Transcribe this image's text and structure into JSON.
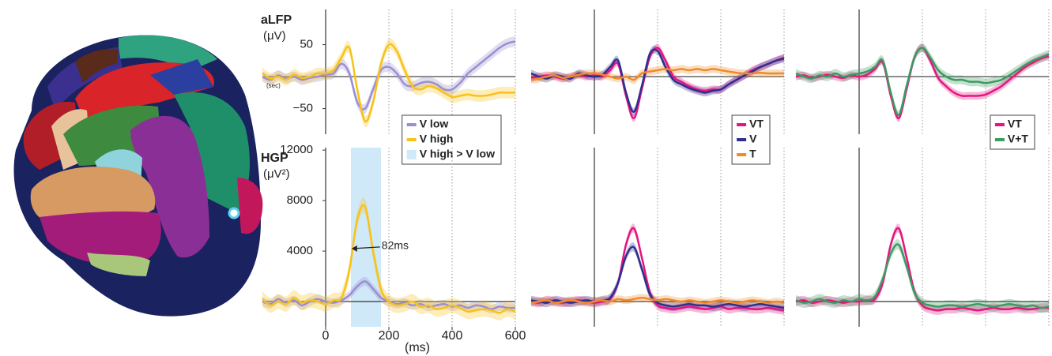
{
  "chart_data": [
    {
      "type": "line",
      "title": "aLFP",
      "ylabel": "(μV)",
      "xlabel": "(sec)",
      "x": [
        -200,
        -175,
        -150,
        -125,
        -100,
        -75,
        -50,
        -25,
        0,
        25,
        50,
        75,
        100,
        125,
        150,
        175,
        200,
        225,
        250,
        275,
        300,
        325,
        350,
        375,
        400,
        425,
        450,
        475,
        500,
        525,
        550,
        575,
        600
      ],
      "xlim": [
        -200,
        600
      ],
      "ylim": [
        -90,
        105
      ],
      "grid_x": [
        200,
        400,
        600
      ],
      "yticks": [
        50,
        {
          "value": -50,
          "label": "−50"
        }
      ],
      "legend": "lower right",
      "series": [
        {
          "name": "V low",
          "color": "#9a8fd2",
          "error": 8,
          "values": [
            0,
            -5,
            2,
            -3,
            0,
            -5,
            -2,
            0,
            3,
            5,
            20,
            5,
            -40,
            -50,
            -20,
            10,
            15,
            5,
            -12,
            -15,
            -10,
            -8,
            -12,
            -20,
            -20,
            -10,
            5,
            15,
            25,
            35,
            45,
            52,
            55
          ]
        },
        {
          "name": "V high",
          "color": "#f7c21b",
          "error": 9,
          "values": [
            5,
            -3,
            0,
            -5,
            3,
            -2,
            0,
            5,
            5,
            10,
            30,
            45,
            -20,
            -70,
            -40,
            20,
            50,
            40,
            10,
            -15,
            -20,
            -15,
            -18,
            -25,
            -32,
            -30,
            -28,
            -30,
            -30,
            -28,
            -25,
            -25,
            -25
          ]
        }
      ]
    },
    {
      "type": "line",
      "x": [
        -200,
        -175,
        -150,
        -125,
        -100,
        -75,
        -50,
        -25,
        0,
        25,
        50,
        75,
        100,
        125,
        150,
        175,
        200,
        225,
        250,
        275,
        300,
        325,
        350,
        375,
        400,
        425,
        450,
        475,
        500,
        525,
        550,
        575,
        600
      ],
      "xlim": [
        -200,
        600
      ],
      "ylim": [
        -90,
        105
      ],
      "grid_x": [
        200,
        400,
        600
      ],
      "legend": "lower right",
      "series": [
        {
          "name": "VT",
          "color": "#e5157f",
          "error": 6,
          "values": [
            -2,
            0,
            2,
            0,
            -3,
            0,
            3,
            0,
            2,
            0,
            10,
            20,
            -30,
            -65,
            -20,
            30,
            45,
            25,
            0,
            -8,
            -15,
            -20,
            -22,
            -20,
            -20,
            -12,
            -5,
            2,
            10,
            15,
            20,
            25,
            30
          ]
        },
        {
          "name": "V",
          "color": "#2d2f8e",
          "error": 6,
          "values": [
            5,
            0,
            -3,
            2,
            0,
            -3,
            5,
            2,
            0,
            3,
            15,
            25,
            -25,
            -55,
            -15,
            35,
            40,
            15,
            -5,
            -12,
            -18,
            -22,
            -25,
            -22,
            -20,
            -12,
            -5,
            2,
            8,
            15,
            20,
            25,
            28
          ]
        },
        {
          "name": "T",
          "color": "#ef8a2a",
          "error": 6,
          "values": [
            -5,
            -3,
            0,
            2,
            -2,
            0,
            3,
            5,
            5,
            3,
            0,
            -3,
            0,
            -5,
            5,
            8,
            10,
            12,
            10,
            12,
            10,
            12,
            10,
            12,
            10,
            8,
            6,
            5,
            5,
            6,
            5,
            5,
            5
          ]
        }
      ]
    },
    {
      "type": "line",
      "x": [
        -200,
        -175,
        -150,
        -125,
        -100,
        -75,
        -50,
        -25,
        0,
        25,
        50,
        75,
        100,
        125,
        150,
        175,
        200,
        225,
        250,
        275,
        300,
        325,
        350,
        375,
        400,
        425,
        450,
        475,
        500,
        525,
        550,
        575,
        600
      ],
      "xlim": [
        -200,
        600
      ],
      "ylim": [
        -90,
        105
      ],
      "grid_x": [
        200,
        400,
        600
      ],
      "legend": "lower right",
      "series": [
        {
          "name": "VT",
          "color": "#e5157f",
          "error": 6,
          "values": [
            0,
            2,
            -2,
            0,
            3,
            0,
            -2,
            2,
            0,
            3,
            12,
            22,
            -30,
            -65,
            -20,
            30,
            45,
            25,
            -2,
            -15,
            -25,
            -30,
            -30,
            -30,
            -28,
            -22,
            -15,
            -5,
            5,
            15,
            22,
            28,
            32
          ]
        },
        {
          "name": "V+T",
          "color": "#3d9a60",
          "error": 7,
          "values": [
            5,
            0,
            -3,
            2,
            0,
            5,
            0,
            3,
            5,
            8,
            15,
            25,
            -25,
            -60,
            -15,
            30,
            45,
            30,
            10,
            0,
            -5,
            -5,
            -8,
            -8,
            -10,
            -8,
            -5,
            2,
            10,
            18,
            25,
            30,
            35
          ]
        }
      ]
    },
    {
      "type": "line",
      "title": "HGP",
      "ylabel": "(μV²)",
      "xlabel": "(ms)",
      "x": [
        -200,
        -175,
        -150,
        -125,
        -100,
        -75,
        -50,
        -25,
        0,
        25,
        50,
        75,
        100,
        125,
        150,
        175,
        200,
        225,
        250,
        275,
        300,
        325,
        350,
        375,
        400,
        425,
        450,
        475,
        500,
        525,
        550,
        575,
        600
      ],
      "xlim": [
        -200,
        600
      ],
      "ylim": [
        -2000,
        12200
      ],
      "grid_x": [
        200,
        400,
        600
      ],
      "xticks": [
        0,
        200,
        400,
        600
      ],
      "yticks": [
        12000,
        8000,
        4000
      ],
      "highlight": {
        "label": "V high > V low",
        "x": [
          80,
          175
        ],
        "color": "#cfe9f8"
      },
      "annotation": {
        "label": "82ms",
        "x": 82,
        "y": 4200
      },
      "series": [
        {
          "name": "V low",
          "color": "#9a8fd2",
          "error": 350,
          "values": [
            0,
            -200,
            200,
            -100,
            100,
            -300,
            0,
            200,
            0,
            -100,
            100,
            500,
            1200,
            1600,
            1000,
            300,
            0,
            -200,
            -100,
            -300,
            -200,
            -400,
            -300,
            -200,
            -400,
            -300,
            -500,
            -300,
            -400,
            -600,
            -400,
            -500,
            -500
          ]
        },
        {
          "name": "V high",
          "color": "#f7c21b",
          "error": 600,
          "values": [
            200,
            -300,
            0,
            -200,
            300,
            -100,
            100,
            0,
            -200,
            100,
            300,
            2500,
            6500,
            7500,
            4000,
            1000,
            0,
            -300,
            -200,
            0,
            -400,
            -300,
            -600,
            -500,
            -300,
            -500,
            -800,
            -700,
            -600,
            -700,
            -900,
            -600,
            -800
          ]
        }
      ]
    },
    {
      "type": "line",
      "x": [
        -200,
        -175,
        -150,
        -125,
        -100,
        -75,
        -50,
        -25,
        0,
        25,
        50,
        75,
        100,
        125,
        150,
        175,
        200,
        225,
        250,
        275,
        300,
        325,
        350,
        375,
        400,
        425,
        450,
        475,
        500,
        525,
        550,
        575,
        600
      ],
      "xlim": [
        -200,
        600
      ],
      "ylim": [
        -2000,
        12200
      ],
      "grid_x": [
        200,
        400,
        600
      ],
      "series": [
        {
          "name": "VT",
          "color": "#e5157f",
          "error": 350,
          "values": [
            0,
            -100,
            100,
            0,
            -100,
            0,
            100,
            0,
            -100,
            0,
            200,
            1500,
            4500,
            5800,
            3500,
            800,
            -300,
            -500,
            -600,
            -500,
            -400,
            -500,
            -600,
            -500,
            -400,
            -600,
            -500,
            -500,
            -600,
            -600,
            -500,
            -600,
            -700
          ]
        },
        {
          "name": "V",
          "color": "#2d2f8e",
          "error": 350,
          "values": [
            100,
            0,
            -100,
            100,
            0,
            -100,
            0,
            100,
            0,
            100,
            300,
            1500,
            3600,
            4300,
            2600,
            600,
            -100,
            -300,
            -400,
            -300,
            -200,
            -300,
            -300,
            -400,
            -300,
            -200,
            -300,
            -400,
            -300,
            -200,
            -300,
            -400,
            -500
          ]
        },
        {
          "name": "T",
          "color": "#ef8a2a",
          "error": 300,
          "values": [
            -100,
            0,
            100,
            -100,
            0,
            100,
            0,
            -100,
            0,
            100,
            0,
            200,
            100,
            200,
            300,
            200,
            100,
            200,
            100,
            0,
            100,
            0,
            -100,
            0,
            100,
            0,
            -100,
            0,
            100,
            0,
            -100,
            0,
            -100
          ]
        }
      ]
    },
    {
      "type": "line",
      "x": [
        -200,
        -175,
        -150,
        -125,
        -100,
        -75,
        -50,
        -25,
        0,
        25,
        50,
        75,
        100,
        125,
        150,
        175,
        200,
        225,
        250,
        275,
        300,
        325,
        350,
        375,
        400,
        425,
        450,
        475,
        500,
        525,
        550,
        575,
        600
      ],
      "xlim": [
        -200,
        600
      ],
      "ylim": [
        -2000,
        12200
      ],
      "grid_x": [
        200,
        400,
        600
      ],
      "series": [
        {
          "name": "VT",
          "color": "#e5157f",
          "error": 350,
          "values": [
            0,
            100,
            -100,
            0,
            100,
            0,
            -100,
            0,
            0,
            100,
            200,
            1500,
            4500,
            5800,
            3500,
            800,
            -300,
            -600,
            -700,
            -600,
            -600,
            -500,
            -600,
            -700,
            -600,
            -500,
            -600,
            -600,
            -500,
            -600,
            -600,
            -500,
            -500
          ]
        },
        {
          "name": "V+T",
          "color": "#3d9a60",
          "error": 400,
          "values": [
            100,
            -100,
            0,
            200,
            0,
            -100,
            100,
            0,
            200,
            100,
            400,
            1800,
            3800,
            4500,
            2800,
            700,
            -100,
            -300,
            -400,
            -300,
            -300,
            -400,
            -300,
            -200,
            -300,
            -400,
            -300,
            -200,
            -300,
            -400,
            -300,
            -500,
            -400
          ]
        }
      ]
    }
  ]
}
